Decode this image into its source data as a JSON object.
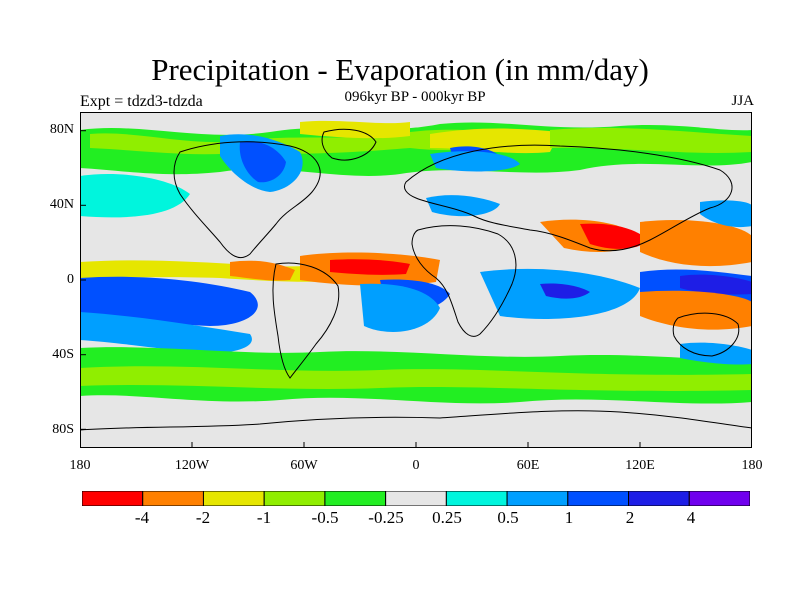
{
  "title": "Precipitation - Evaporation (in mm/day)",
  "subtitle": "096kyr BP - 000kyr BP",
  "experiment": "Expt = tdzd3-tdzda",
  "season": "JJA",
  "map": {
    "projection": "cylindrical-equidistant",
    "lon_range": [
      -180,
      180
    ],
    "lat_range": [
      -90,
      90
    ],
    "lat_labels": [
      "80N",
      "40N",
      "0",
      "40S",
      "80S"
    ],
    "lat_values": [
      80,
      40,
      0,
      -40,
      -80
    ],
    "lon_labels": [
      "180",
      "120W",
      "60W",
      "0",
      "60E",
      "120E",
      "180"
    ],
    "lon_values": [
      -180,
      -120,
      -60,
      0,
      60,
      120,
      180
    ],
    "background_color": "#e6e6e6"
  },
  "colorbar": {
    "colors": [
      "#ff0000",
      "#ff8000",
      "#e6e600",
      "#90ee00",
      "#22ee22",
      "#e6e6e6",
      "#00f5dd",
      "#009fff",
      "#0050ff",
      "#1e1ee6",
      "#7000ee"
    ],
    "labels": [
      "-4",
      "-2",
      "-1",
      "-0.5",
      "-0.25",
      "0.25",
      "0.5",
      "1",
      "2",
      "4"
    ]
  }
}
